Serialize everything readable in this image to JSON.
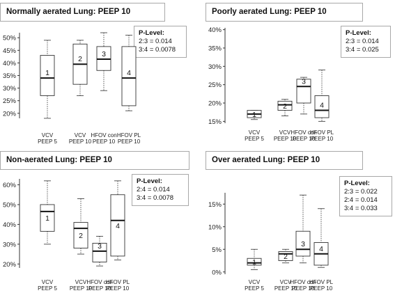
{
  "chart_data": [
    {
      "type": "boxplot",
      "title": "Normally aerated Lung: PEEP 10",
      "p_level": {
        "header": "P-Level:",
        "lines": [
          "2:3 = 0.014",
          "3:4 = 0.0078"
        ]
      },
      "ylim": [
        18,
        52
      ],
      "yticks": [
        20,
        25,
        30,
        35,
        40,
        45,
        50
      ],
      "tick_labels": [
        "20%",
        "25%",
        "30%",
        "35%",
        "40%",
        "45%",
        "50%"
      ],
      "groups": [
        {
          "id": "1",
          "label1": "VCV",
          "label2": "PEEP 5",
          "min": 18,
          "q1": 27,
          "median": 34,
          "q3": 43,
          "max": 49
        },
        {
          "id": "2",
          "label1": "VCV",
          "label2": "PEEP 10",
          "min": 27,
          "q1": 31.5,
          "median": 39.5,
          "q3": 47.5,
          "max": 49
        },
        {
          "id": "3",
          "label1": "HFOV con",
          "label2": "PEEP 10",
          "min": 29,
          "q1": 37,
          "median": 41.5,
          "q3": 46.5,
          "max": 52
        },
        {
          "id": "4",
          "label1": "HFOV PL",
          "label2": "PEEP 10",
          "min": 21,
          "q1": 23,
          "median": 34,
          "q3": 46.5,
          "max": 51
        }
      ]
    },
    {
      "type": "boxplot",
      "title": "Poorly aerated Lung: PEEP 10",
      "p_level": {
        "header": "P-Level:",
        "lines": [
          "2:3 = 0.014",
          "3:4 = 0.025"
        ]
      },
      "ylim": [
        14.5,
        40.5
      ],
      "yticks": [
        15,
        20,
        25,
        30,
        35,
        40
      ],
      "tick_labels": [
        "15%",
        "20%",
        "25%",
        "30%",
        "35%",
        "40%"
      ],
      "groups": [
        {
          "id": "1",
          "label1": "VCV",
          "label2": "PEEP 5",
          "min": 15.5,
          "q1": 16,
          "median": 17,
          "q3": 18,
          "max": 18
        },
        {
          "id": "2",
          "label1": "VCV",
          "label2": "PEEP 10",
          "min": 16.5,
          "q1": 18,
          "median": 19.5,
          "q3": 20.5,
          "max": 21
        },
        {
          "id": "3",
          "label1": "HFOV con",
          "label2": "PEEP 10",
          "min": 17,
          "q1": 20,
          "median": 24.5,
          "q3": 26.5,
          "max": 27
        },
        {
          "id": "4",
          "label1": "HFOV PL",
          "label2": "PEEP 10",
          "min": 15,
          "q1": 16,
          "median": 18,
          "q3": 22,
          "max": 29
        }
      ]
    },
    {
      "type": "boxplot",
      "title": "Non-aerated Lung: PEEP 10",
      "p_level": {
        "header": "P-Level:",
        "lines": [
          "2:4 = 0.014",
          "3:4 = 0.0078"
        ]
      },
      "ylim": [
        18,
        63
      ],
      "yticks": [
        20,
        30,
        40,
        50,
        60
      ],
      "tick_labels": [
        "20%",
        "30%",
        "40%",
        "50%",
        "60%"
      ],
      "groups": [
        {
          "id": "1",
          "label1": "VCV",
          "label2": "PEEP 5",
          "min": 30,
          "q1": 36.5,
          "median": 46.5,
          "q3": 50,
          "max": 62
        },
        {
          "id": "2",
          "label1": "VCV",
          "label2": "PEEP 10",
          "min": 25,
          "q1": 28,
          "median": 38,
          "q3": 41,
          "max": 53
        },
        {
          "id": "3",
          "label1": "HFOV con",
          "label2": "PEEP 10",
          "min": 19,
          "q1": 21,
          "median": 26.5,
          "q3": 30.5,
          "max": 34
        },
        {
          "id": "4",
          "label1": "HFOV PL",
          "label2": "PEEP 10",
          "min": 22,
          "q1": 24,
          "median": 42,
          "q3": 55,
          "max": 62
        }
      ]
    },
    {
      "type": "boxplot",
      "title": "Over aerated Lung: PEEP 10",
      "p_level": {
        "header": "P-Level:",
        "lines": [
          "2:3 = 0.022",
          "2:4 = 0.014",
          "3:4 = 0.033"
        ]
      },
      "ylim": [
        -0.5,
        17.5
      ],
      "yticks": [
        0,
        5,
        10,
        15
      ],
      "tick_labels": [
        "0%",
        "5%",
        "10%",
        "15%"
      ],
      "groups": [
        {
          "id": "1",
          "label1": "VCV",
          "label2": "PEEP 5",
          "min": 0.5,
          "q1": 1.5,
          "median": 2,
          "q3": 3,
          "max": 5
        },
        {
          "id": "2",
          "label1": "VCV",
          "label2": "PEEP 10",
          "min": 2,
          "q1": 2.5,
          "median": 4,
          "q3": 4.5,
          "max": 5
        },
        {
          "id": "3",
          "label1": "HFOV con",
          "label2": "PEEP 10",
          "min": 2,
          "q1": 3.5,
          "median": 5,
          "q3": 9,
          "max": 17
        },
        {
          "id": "4",
          "label1": "HFOV PL",
          "label2": "PEEP 10",
          "min": 1,
          "q1": 1.5,
          "median": 4,
          "q3": 6.5,
          "max": 14
        }
      ]
    }
  ]
}
